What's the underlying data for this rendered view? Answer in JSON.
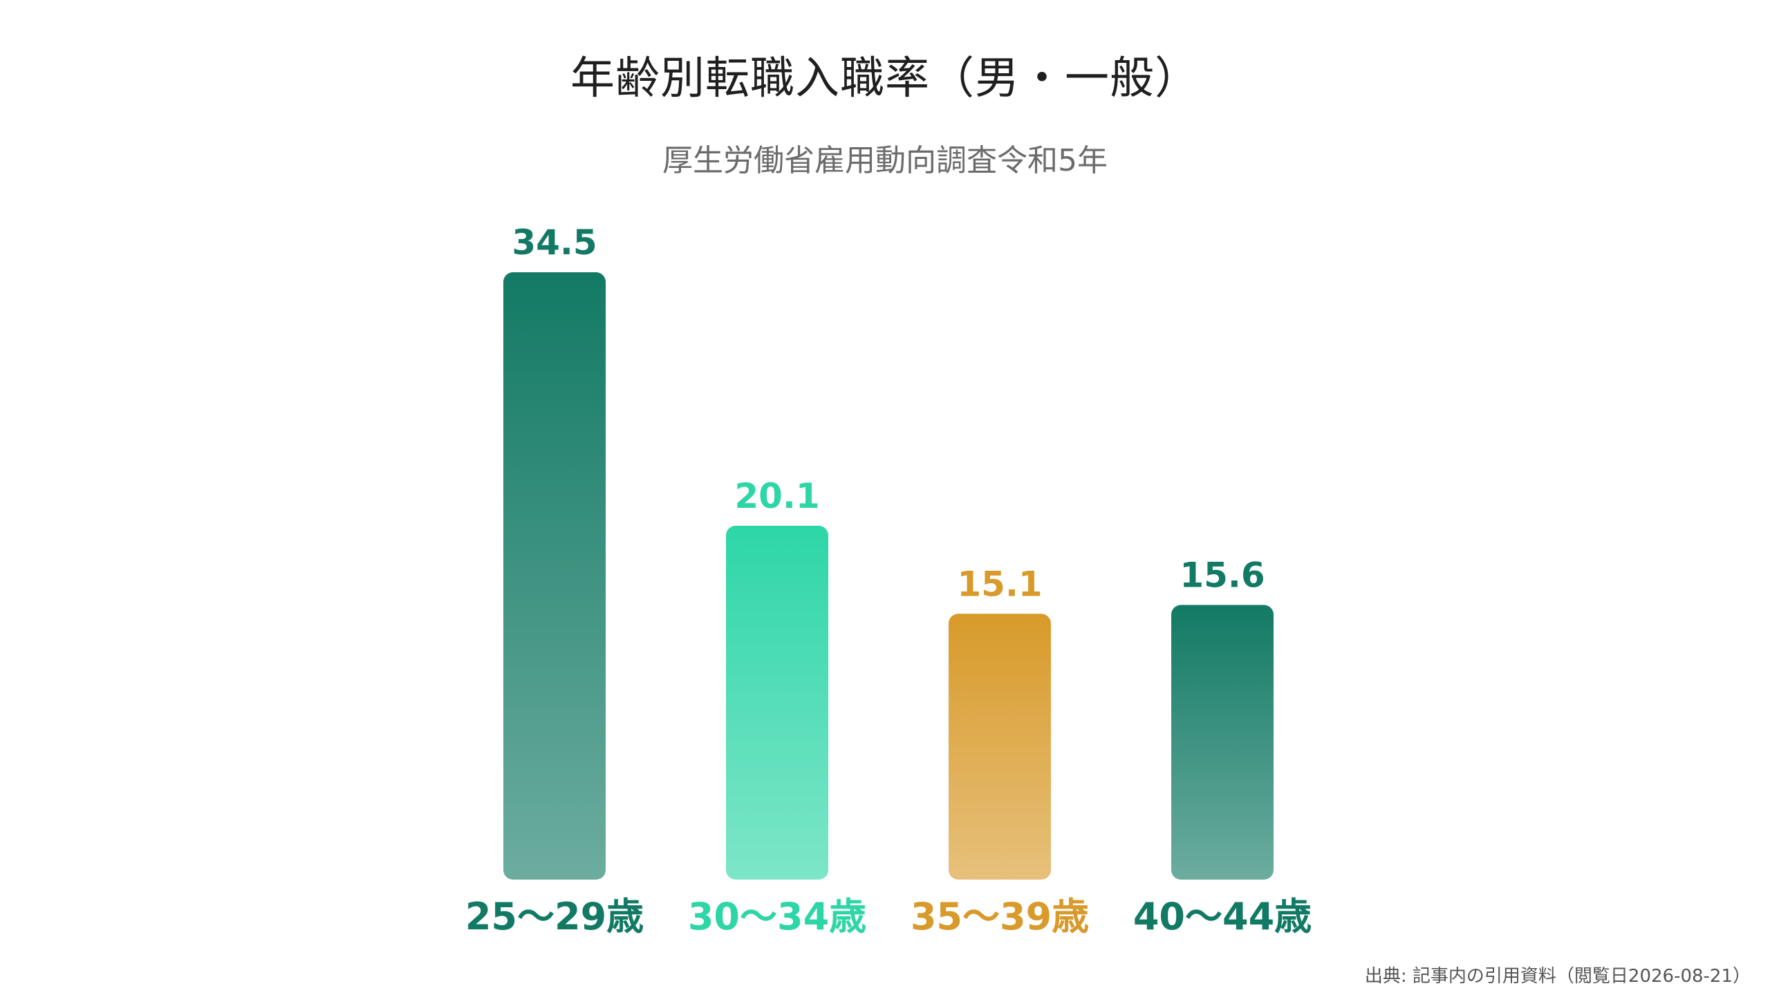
{
  "chart_data": {
    "type": "bar",
    "title": "年齢別転職入職率（男・一般）",
    "subtitle": "厚生労働省雇用動向調査令和5年",
    "categories": [
      "25〜29歳",
      "30〜34歳",
      "35〜39歳",
      "40〜44歳"
    ],
    "values": [
      34.5,
      20.1,
      15.1,
      15.6
    ],
    "value_labels": [
      "34.5",
      "20.1",
      "15.1",
      "15.6"
    ],
    "colors": [
      "#127A64",
      "#2ED6A7",
      "#D89A2A",
      "#127A64"
    ],
    "xlabel": "",
    "ylabel": "",
    "ylim": [
      0,
      34.5
    ],
    "grid": false,
    "legend": "none"
  },
  "source": "出典: 記事内の引用資料（閲覧日2026-08-21）"
}
